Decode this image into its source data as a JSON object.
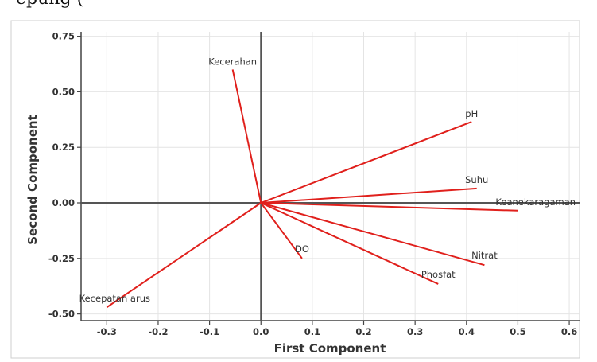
{
  "caption_fragment": "epung    (",
  "chart_data": {
    "type": "biplot",
    "xlabel": "First Component",
    "ylabel": "Second Component",
    "xlim": [
      -0.35,
      0.62
    ],
    "ylim": [
      -0.53,
      0.77
    ],
    "xticks": [
      -0.3,
      -0.2,
      -0.1,
      0.0,
      0.1,
      0.2,
      0.3,
      0.4,
      0.5,
      0.6
    ],
    "xtick_labels": [
      "-0.3",
      "-0.2",
      "-0.1",
      "0.0",
      "0.1",
      "0.2",
      "0.3",
      "0.4",
      "0.5",
      "0.6"
    ],
    "yticks": [
      0.75,
      0.5,
      0.25,
      0.0,
      -0.25,
      -0.5
    ],
    "ytick_labels": [
      "0.75",
      "0.50",
      "0.25",
      "0.00",
      "-0.25",
      "-0.50"
    ],
    "grid": true,
    "vector_color": "#e0201c",
    "vectors": [
      {
        "label": "Kecerahan",
        "x": -0.055,
        "y": 0.6
      },
      {
        "label": "pH",
        "x": 0.41,
        "y": 0.365
      },
      {
        "label": "Suhu",
        "x": 0.42,
        "y": 0.065
      },
      {
        "label": "Keanekaragaman",
        "x": 0.5,
        "y": -0.035
      },
      {
        "label": "Nitrat",
        "x": 0.435,
        "y": -0.28
      },
      {
        "label": "Phosfat",
        "x": 0.345,
        "y": -0.365
      },
      {
        "label": "DO",
        "x": 0.08,
        "y": -0.25
      },
      {
        "label": "Kecepatan arus",
        "x": -0.3,
        "y": -0.47
      }
    ]
  }
}
